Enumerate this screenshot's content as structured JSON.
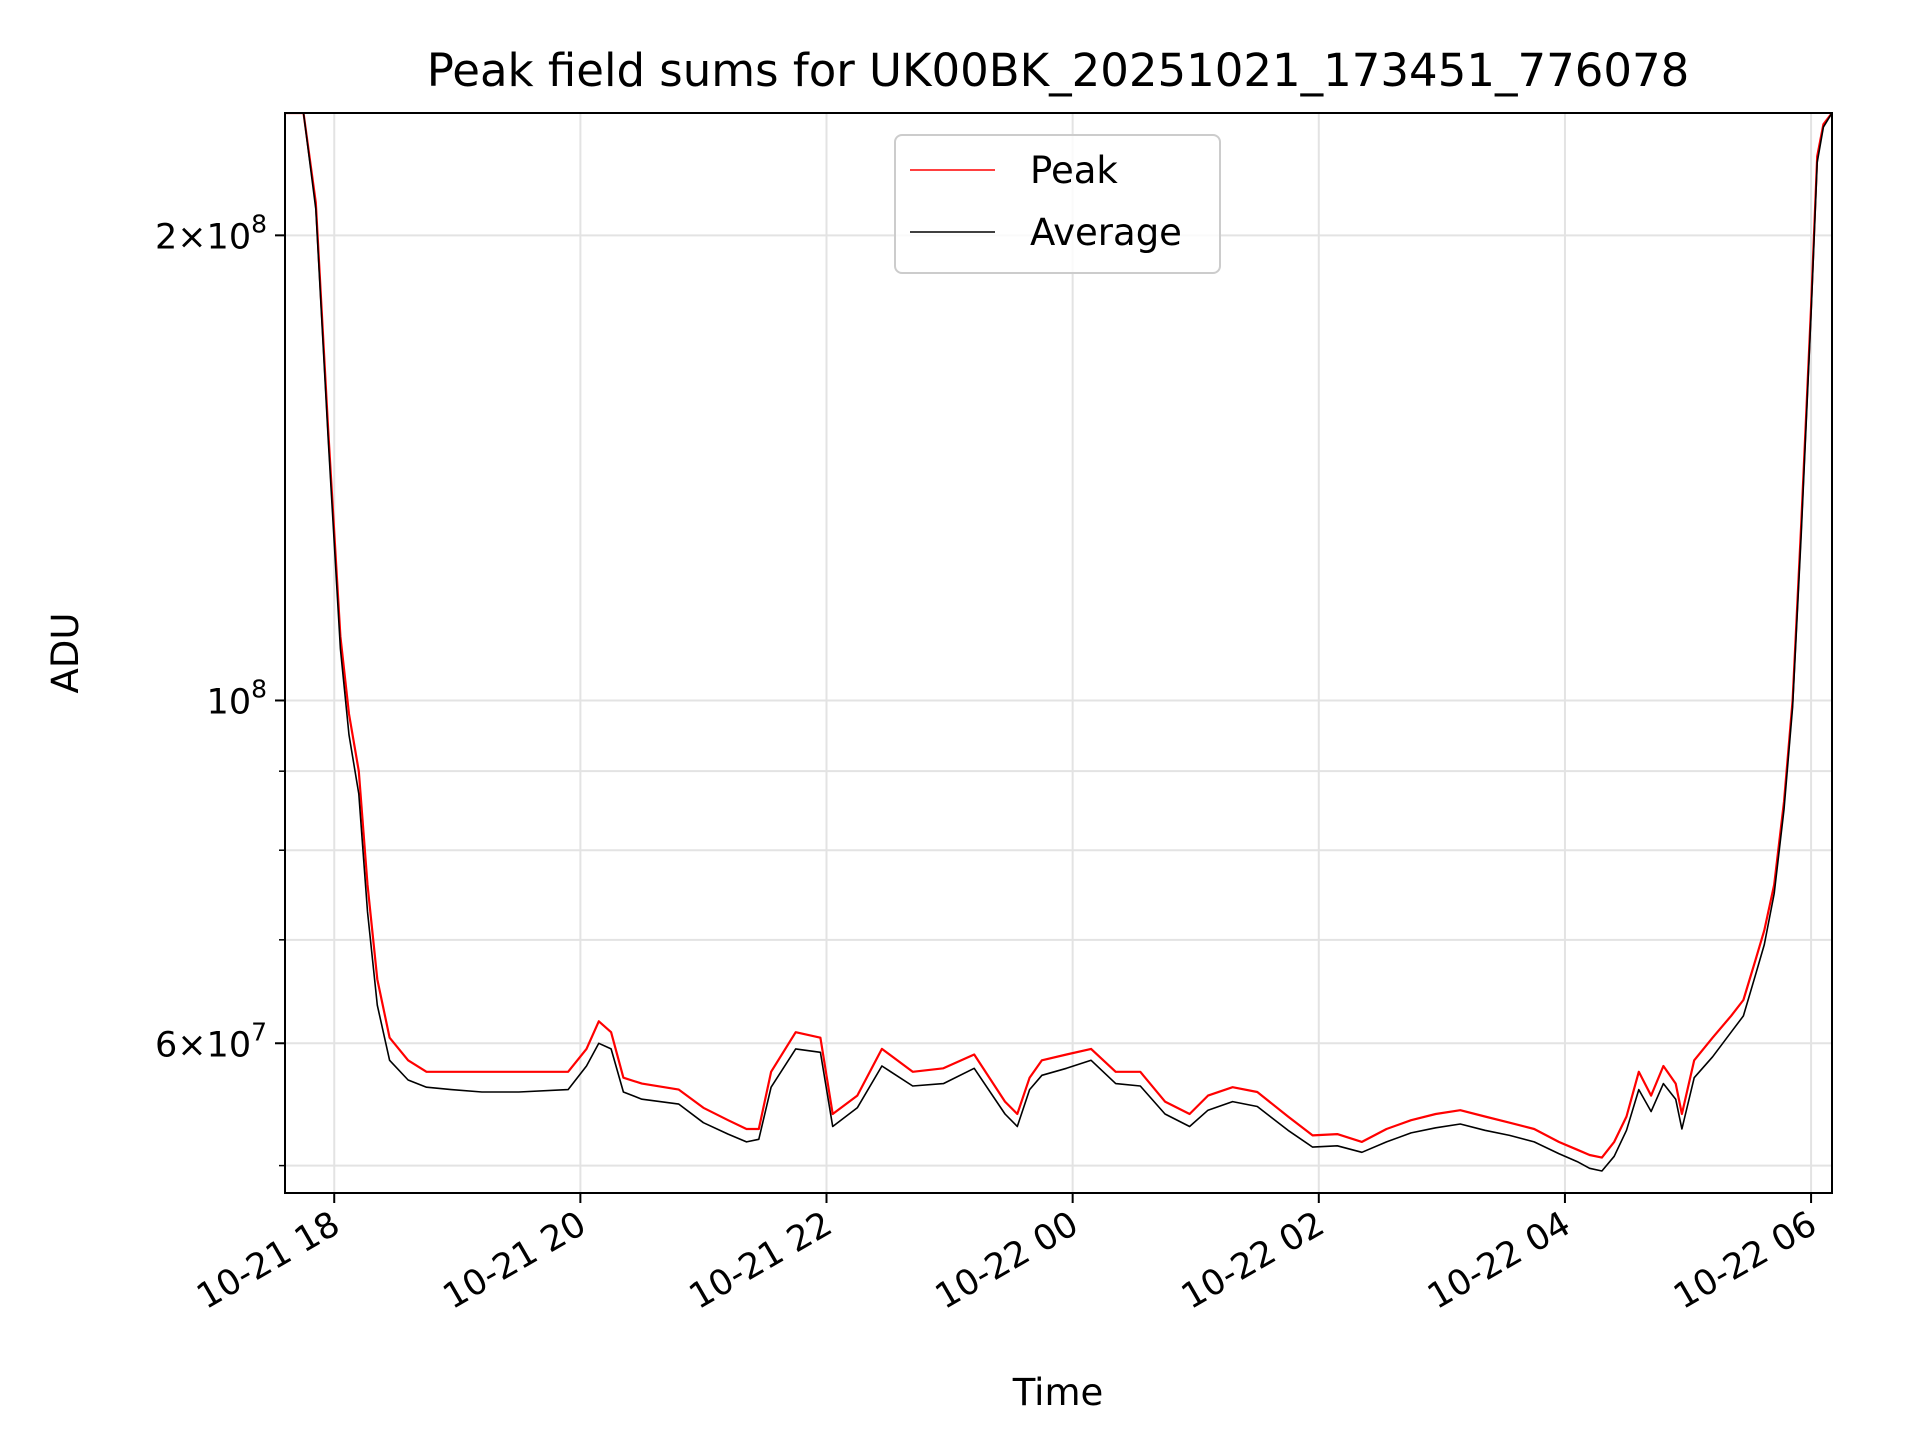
{
  "chart_data": {
    "type": "line",
    "title": "Peak field sums for UK00BK_20251021_173451_776078",
    "xlabel": "Time",
    "ylabel": "ADU",
    "yscale": "log",
    "ylim": [
      48000000,
      240000000
    ],
    "xlim_hours": [
      17.6,
      30.17
    ],
    "grid": true,
    "legend_location": "upper center",
    "x_ticks": [
      {
        "hour": 18,
        "label": "10-21 18"
      },
      {
        "hour": 20,
        "label": "10-21 20"
      },
      {
        "hour": 22,
        "label": "10-21 22"
      },
      {
        "hour": 24,
        "label": "10-22 00"
      },
      {
        "hour": 26,
        "label": "10-22 02"
      },
      {
        "hour": 28,
        "label": "10-22 04"
      },
      {
        "hour": 30,
        "label": "10-22 06"
      }
    ],
    "y_major_ticks": [
      {
        "value": 200000000,
        "base": "2×10",
        "exp": "8"
      },
      {
        "value": 100000000,
        "base": "10",
        "exp": "8"
      },
      {
        "value": 60000000,
        "base": "6×10",
        "exp": "7"
      }
    ],
    "y_minor_ticks": [
      50000000,
      70000000,
      80000000,
      90000000
    ],
    "series": [
      {
        "name": "Peak",
        "color": "#ff0000",
        "x_hours": [
          17.6,
          17.75,
          17.85,
          17.95,
          18.05,
          18.12,
          18.2,
          18.27,
          18.35,
          18.45,
          18.6,
          18.75,
          18.95,
          19.2,
          19.5,
          19.9,
          20.05,
          20.15,
          20.25,
          20.35,
          20.5,
          20.8,
          21.0,
          21.2,
          21.35,
          21.45,
          21.55,
          21.75,
          21.95,
          22.05,
          22.25,
          22.45,
          22.7,
          22.95,
          23.2,
          23.45,
          23.55,
          23.65,
          23.75,
          23.95,
          24.15,
          24.35,
          24.55,
          24.75,
          24.95,
          25.1,
          25.3,
          25.5,
          25.75,
          25.95,
          26.15,
          26.35,
          26.55,
          26.75,
          26.95,
          27.15,
          27.35,
          27.55,
          27.75,
          27.95,
          28.1,
          28.2,
          28.3,
          28.4,
          28.5,
          28.6,
          28.7,
          28.8,
          28.9,
          28.95,
          29.05,
          29.2,
          29.35,
          29.45,
          29.55,
          29.62,
          29.7,
          29.78,
          29.85,
          29.92,
          30.0,
          30.05,
          30.1,
          30.17
        ],
        "values": [
          240000000,
          240000000,
          210000000,
          150000000,
          110000000,
          98000000,
          90000000,
          76000000,
          66000000,
          60500000,
          58500000,
          57500000,
          57500000,
          57500000,
          57500000,
          57500000,
          59500000,
          62000000,
          61000000,
          57000000,
          56500000,
          56000000,
          54500000,
          53500000,
          52800000,
          52800000,
          57500000,
          61000000,
          60500000,
          54000000,
          55500000,
          59500000,
          57500000,
          57800000,
          59000000,
          55000000,
          54000000,
          57000000,
          58500000,
          59000000,
          59500000,
          57500000,
          57500000,
          55000000,
          54000000,
          55500000,
          56200000,
          55800000,
          53800000,
          52300000,
          52400000,
          51800000,
          52800000,
          53500000,
          54000000,
          54300000,
          53800000,
          53300000,
          52800000,
          51800000,
          51200000,
          50800000,
          50600000,
          51800000,
          53800000,
          57500000,
          55500000,
          58000000,
          56500000,
          54000000,
          58500000,
          60500000,
          62500000,
          64000000,
          68000000,
          71000000,
          76000000,
          86000000,
          100000000,
          130000000,
          180000000,
          225000000,
          236000000,
          240000000
        ]
      },
      {
        "name": "Average",
        "color": "#000000",
        "x_hours": [
          17.6,
          17.75,
          17.85,
          17.95,
          18.05,
          18.12,
          18.2,
          18.27,
          18.35,
          18.45,
          18.6,
          18.75,
          18.95,
          19.2,
          19.5,
          19.9,
          20.05,
          20.15,
          20.25,
          20.35,
          20.5,
          20.8,
          21.0,
          21.2,
          21.35,
          21.45,
          21.55,
          21.75,
          21.95,
          22.05,
          22.25,
          22.45,
          22.7,
          22.95,
          23.2,
          23.45,
          23.55,
          23.65,
          23.75,
          23.95,
          24.15,
          24.35,
          24.55,
          24.75,
          24.95,
          25.1,
          25.3,
          25.5,
          25.75,
          25.95,
          26.15,
          26.35,
          26.55,
          26.75,
          26.95,
          27.15,
          27.35,
          27.55,
          27.75,
          27.95,
          28.1,
          28.2,
          28.3,
          28.4,
          28.5,
          28.6,
          28.7,
          28.8,
          28.9,
          28.95,
          29.05,
          29.2,
          29.35,
          29.45,
          29.55,
          29.62,
          29.7,
          29.78,
          29.85,
          29.92,
          30.0,
          30.05,
          30.1,
          30.17
        ],
        "values": [
          240000000,
          240000000,
          208000000,
          148000000,
          108000000,
          95000000,
          87000000,
          73000000,
          63500000,
          58500000,
          56800000,
          56200000,
          56000000,
          55800000,
          55800000,
          56000000,
          58000000,
          60000000,
          59500000,
          55800000,
          55200000,
          54800000,
          53300000,
          52400000,
          51800000,
          52000000,
          56200000,
          59500000,
          59200000,
          53000000,
          54500000,
          58000000,
          56300000,
          56500000,
          57800000,
          54000000,
          53000000,
          56000000,
          57200000,
          57800000,
          58500000,
          56500000,
          56300000,
          54000000,
          53000000,
          54300000,
          55000000,
          54600000,
          52700000,
          51400000,
          51500000,
          51000000,
          51800000,
          52500000,
          52900000,
          53200000,
          52700000,
          52300000,
          51800000,
          50900000,
          50300000,
          49800000,
          49600000,
          50700000,
          52700000,
          56000000,
          54200000,
          56500000,
          55200000,
          52800000,
          57000000,
          58800000,
          61000000,
          62500000,
          66500000,
          69500000,
          75000000,
          85000000,
          99000000,
          128000000,
          178000000,
          223000000,
          235000000,
          240000000
        ]
      }
    ]
  }
}
